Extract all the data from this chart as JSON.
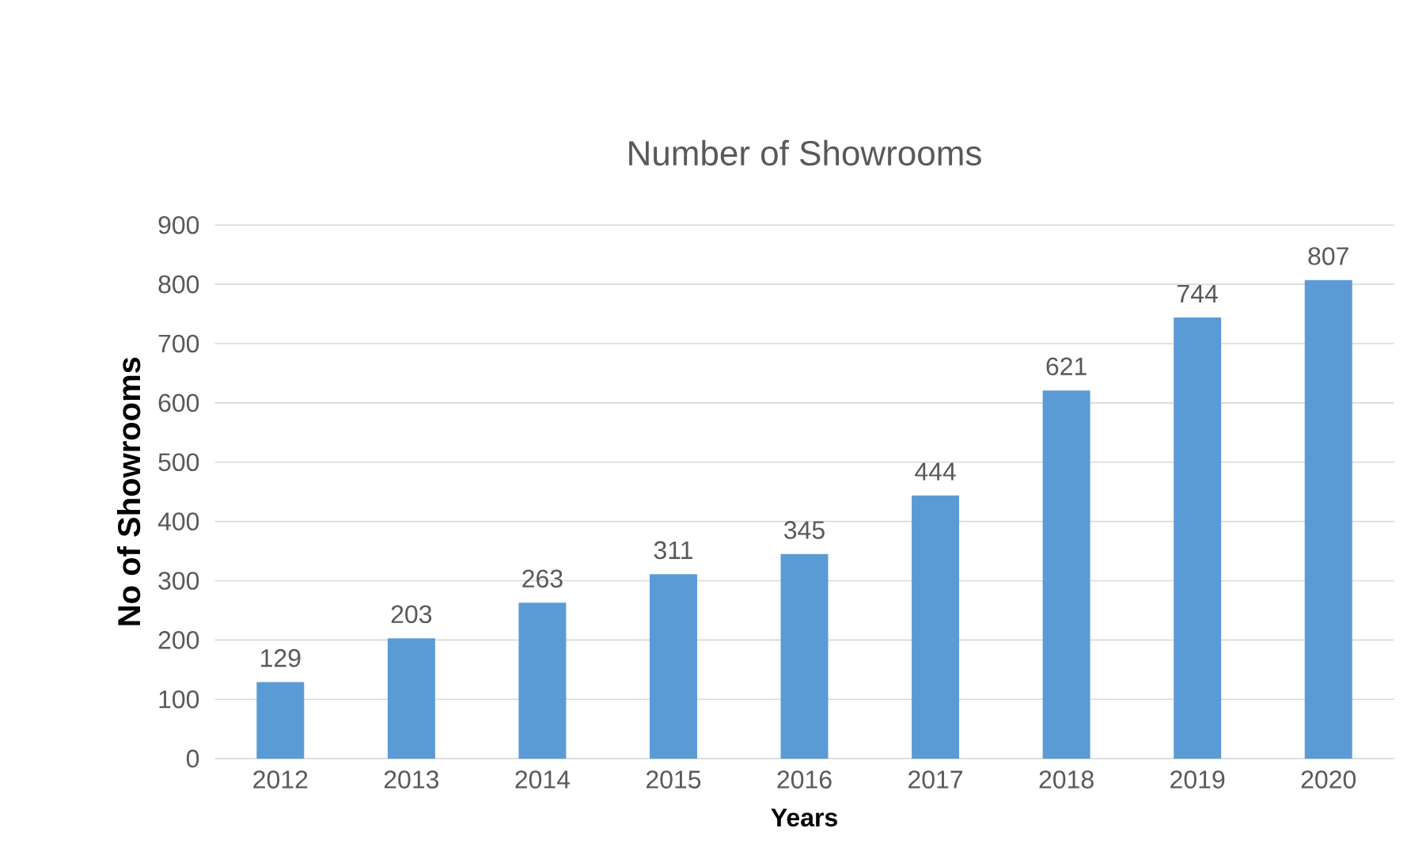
{
  "chart_data": {
    "type": "bar",
    "title": "Number of Showrooms",
    "xlabel": "Years",
    "ylabel": "No of Showrooms",
    "categories": [
      "2012",
      "2013",
      "2014",
      "2015",
      "2016",
      "2017",
      "2018",
      "2019",
      "2020"
    ],
    "values": [
      129,
      203,
      263,
      311,
      345,
      444,
      621,
      744,
      807
    ],
    "color": "#5b9bd5",
    "ylim": [
      0,
      900
    ],
    "yticks": [
      0,
      100,
      200,
      300,
      400,
      500,
      600,
      700,
      800,
      900
    ],
    "grid": "y",
    "data_labels": true
  }
}
